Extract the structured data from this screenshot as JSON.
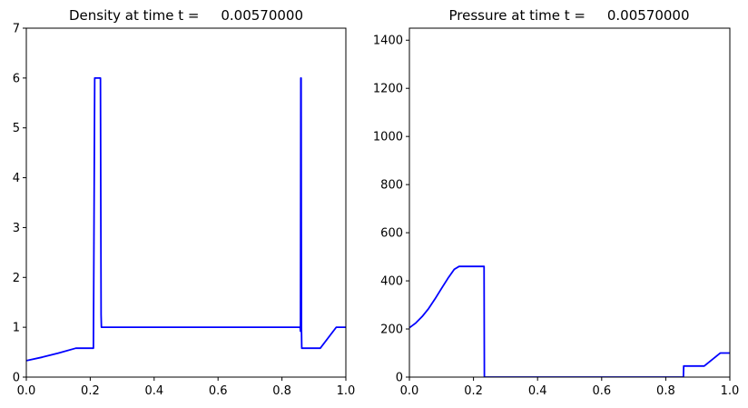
{
  "chart_data": [
    {
      "type": "line",
      "title": "Density at time t =     0.00570000",
      "xlabel": "",
      "ylabel": "",
      "xlim": [
        0,
        1
      ],
      "ylim": [
        0,
        7
      ],
      "xticks": [
        "0.0",
        "0.2",
        "0.4",
        "0.6",
        "0.8",
        "1.0"
      ],
      "yticks": [
        "0",
        "1",
        "2",
        "3",
        "4",
        "5",
        "6",
        "7"
      ],
      "grid": false,
      "color": "#0000ff",
      "series": [
        {
          "x": [
            0.0,
            0.05,
            0.1,
            0.155,
            0.21,
            0.214,
            0.217,
            0.23,
            0.232,
            0.234,
            0.235,
            0.5,
            0.85,
            0.857,
            0.858,
            0.859,
            0.86,
            0.861,
            0.862,
            0.863,
            0.864,
            0.865,
            0.92,
            0.97,
            1.0
          ],
          "y": [
            0.33,
            0.4,
            0.48,
            0.58,
            0.58,
            6.0,
            6.0,
            6.0,
            6.0,
            1.25,
            1.0,
            1.0,
            1.0,
            1.0,
            0.92,
            6.0,
            6.0,
            1.0,
            0.58,
            0.58,
            0.58,
            0.58,
            0.58,
            1.0,
            1.0
          ]
        }
      ]
    },
    {
      "type": "line",
      "title": "Pressure at time t =     0.00570000",
      "xlabel": "",
      "ylabel": "",
      "xlim": [
        0,
        1
      ],
      "ylim": [
        0,
        1450
      ],
      "xticks": [
        "0.0",
        "0.2",
        "0.4",
        "0.6",
        "0.8",
        "1.0"
      ],
      "yticks": [
        "0",
        "200",
        "400",
        "600",
        "800",
        "1000",
        "1200",
        "1400"
      ],
      "grid": false,
      "color": "#0000ff",
      "series": [
        {
          "x": [
            0.0,
            0.02,
            0.04,
            0.06,
            0.08,
            0.1,
            0.12,
            0.14,
            0.155,
            0.2,
            0.232,
            0.233,
            0.234,
            0.5,
            0.855,
            0.856,
            0.857,
            0.92,
            0.97,
            1.0
          ],
          "y": [
            205,
            225,
            252,
            285,
            325,
            368,
            410,
            448,
            460,
            460,
            460,
            460,
            0.01,
            0.01,
            0.01,
            46,
            46,
            46,
            100,
            100
          ]
        }
      ]
    }
  ]
}
